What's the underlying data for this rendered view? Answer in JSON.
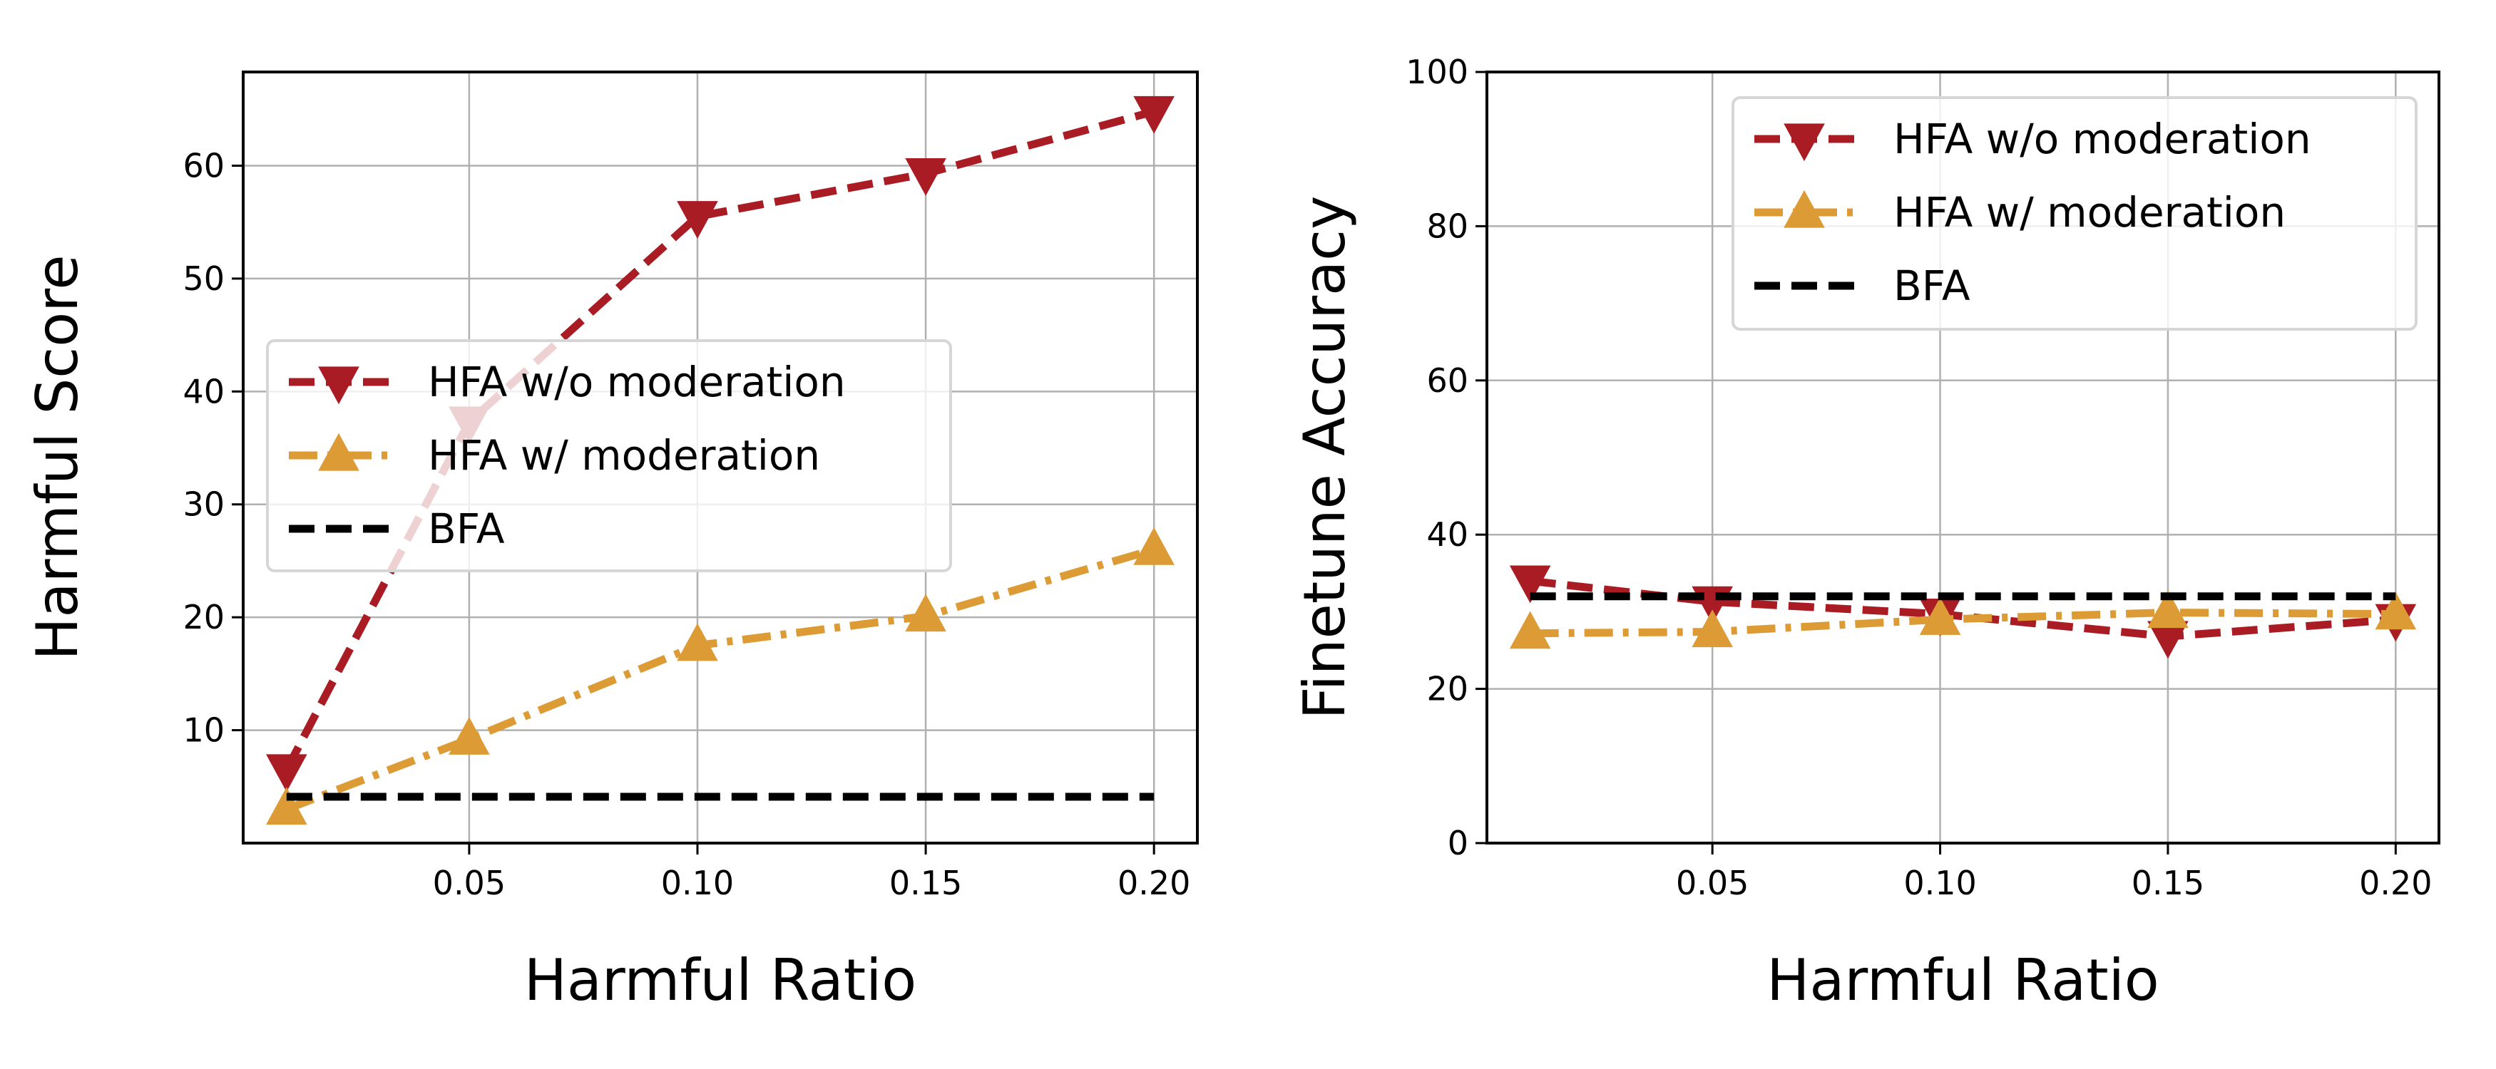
{
  "chart_data": [
    {
      "type": "line",
      "xlabel": "Harmful Ratio",
      "ylabel": "Harmful Score",
      "xlim": [
        0.0005,
        0.2095
      ],
      "ylim": [
        0,
        68.3
      ],
      "xticks": [
        "0.05",
        "0.10",
        "0.15",
        "0.20"
      ],
      "yticks": [
        "10",
        "20",
        "30",
        "40",
        "50",
        "60"
      ],
      "grid": true,
      "legend_position": "center-left",
      "x": [
        0.01,
        0.05,
        0.1,
        0.15,
        0.2
      ],
      "series": [
        {
          "name": "HFA w/o moderation",
          "values": [
            6.5,
            37.3,
            55.5,
            59.3,
            64.8
          ],
          "color": "#aa1c24",
          "marker": "triangle-down",
          "linestyle": "dashed"
        },
        {
          "name": "HFA w/ moderation",
          "values": [
            3.0,
            9.2,
            17.5,
            20.1,
            26.0
          ],
          "color": "#dc9b35",
          "marker": "triangle-up",
          "linestyle": "dash-dot"
        },
        {
          "name": "BFA",
          "values": [
            4.1,
            4.1,
            4.1,
            4.1,
            4.1
          ],
          "color": "#000000",
          "marker": "none",
          "linestyle": "dashed"
        }
      ]
    },
    {
      "type": "line",
      "xlabel": "Harmful Ratio",
      "ylabel": "Finetune Accuracy",
      "xlim": [
        0.0005,
        0.2095
      ],
      "ylim": [
        0,
        100
      ],
      "xticks": [
        "0.05",
        "0.10",
        "0.15",
        "0.20"
      ],
      "yticks": [
        "0",
        "20",
        "40",
        "60",
        "80",
        "100"
      ],
      "grid": true,
      "legend_position": "upper-right",
      "x": [
        0.01,
        0.05,
        0.1,
        0.15,
        0.2
      ],
      "series": [
        {
          "name": "HFA w/o moderation",
          "values": [
            34.0,
            31.3,
            29.7,
            26.8,
            29.0
          ],
          "color": "#aa1c24",
          "marker": "triangle-down",
          "linestyle": "dashed"
        },
        {
          "name": "HFA w/ moderation",
          "values": [
            27.2,
            27.4,
            29.0,
            29.9,
            29.7
          ],
          "color": "#dc9b35",
          "marker": "triangle-up",
          "linestyle": "dash-dot"
        },
        {
          "name": "BFA",
          "values": [
            32.0,
            32.0,
            32.0,
            32.0,
            32.0
          ],
          "color": "#000000",
          "marker": "none",
          "linestyle": "dashed"
        }
      ]
    }
  ]
}
